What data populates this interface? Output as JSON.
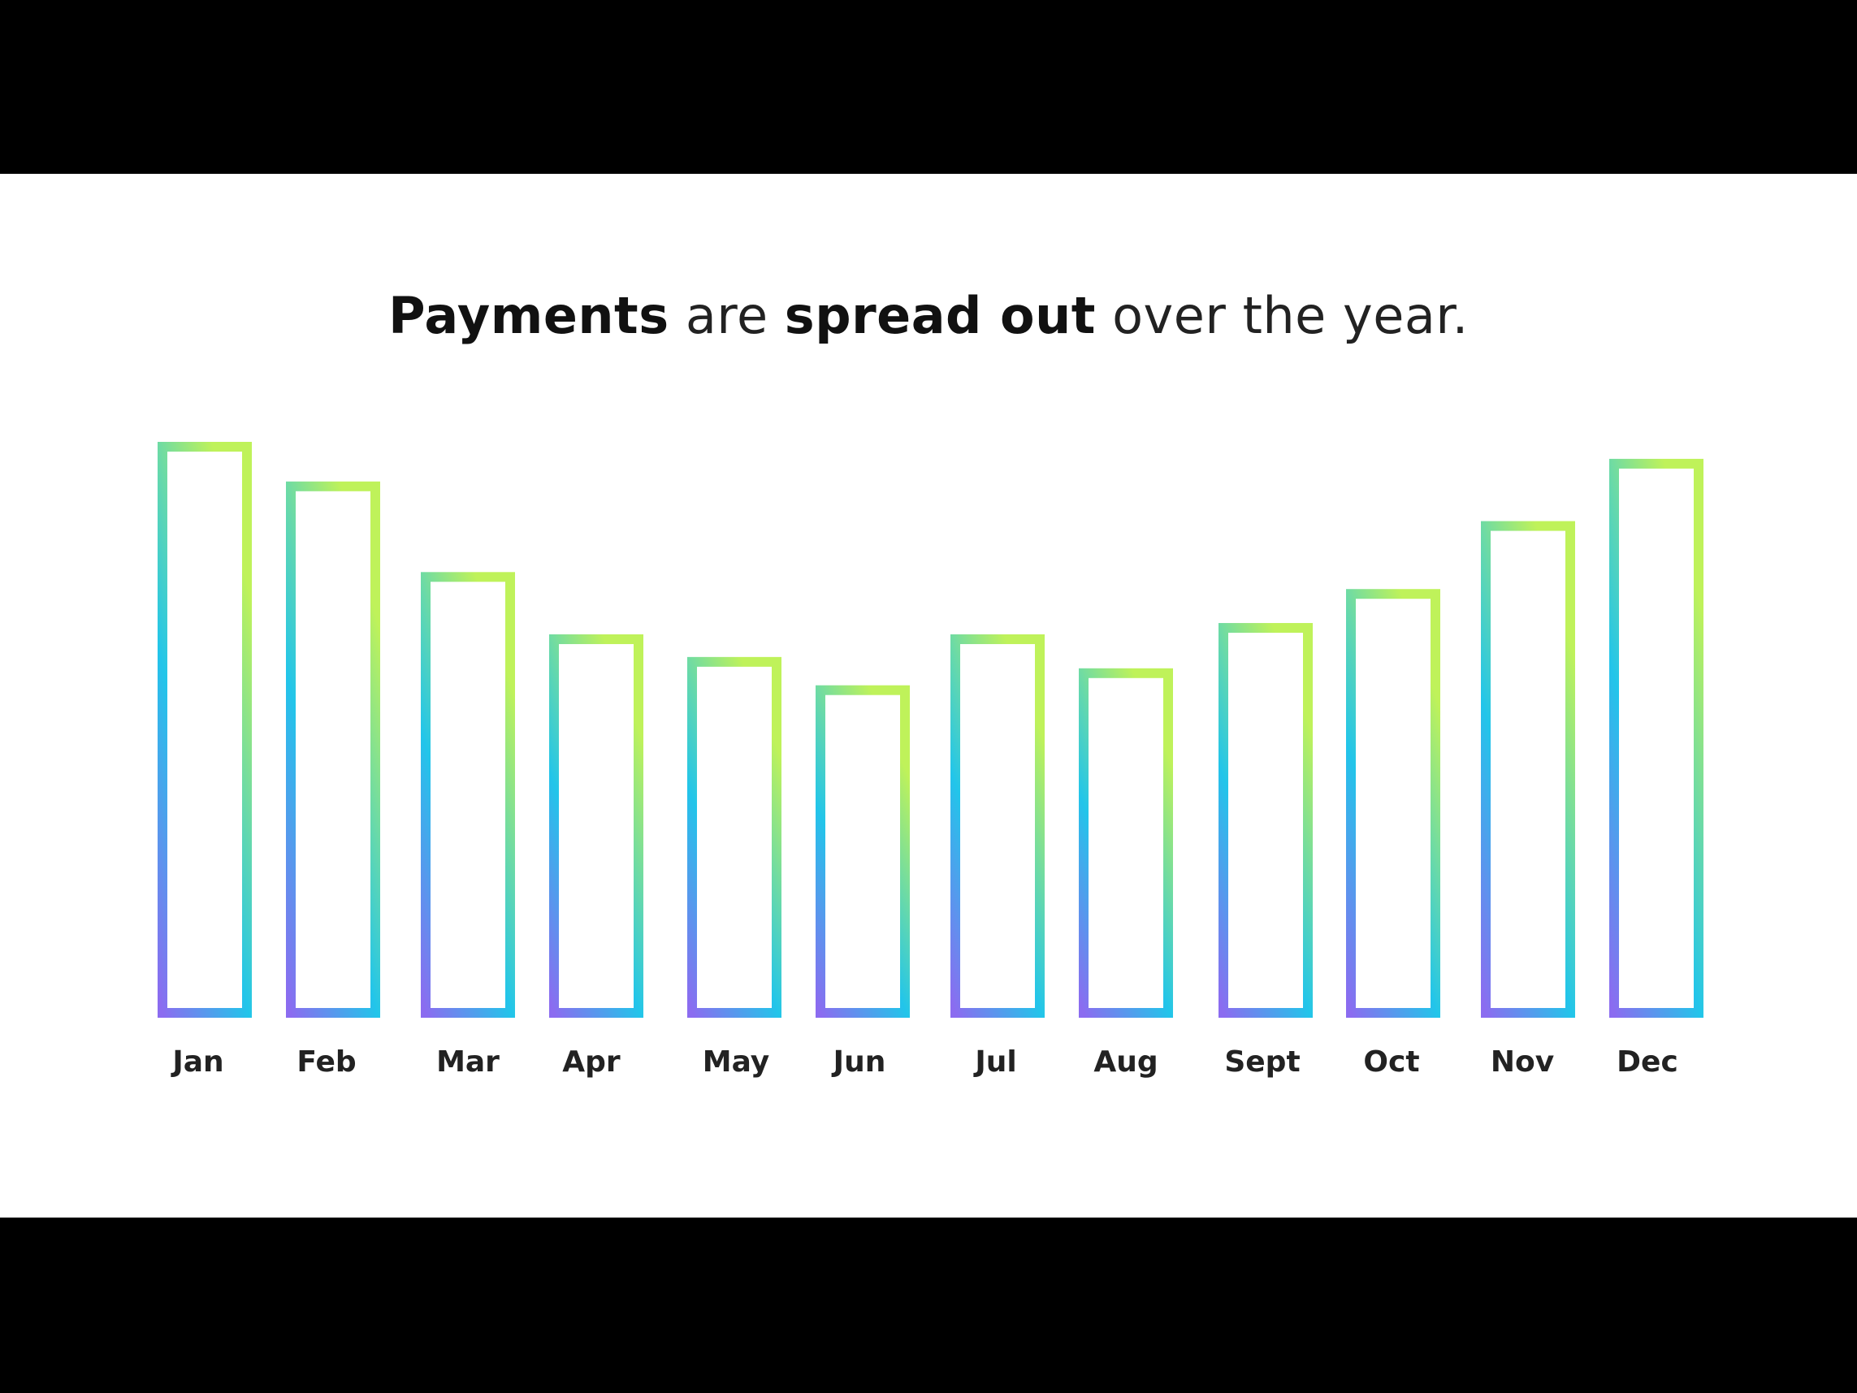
{
  "title": {
    "part1": "Payments",
    "part2": " are ",
    "part3": "spread out",
    "part4": " over the year."
  },
  "chart_data": {
    "type": "bar",
    "title": "Payments are spread out over the year.",
    "categories": [
      "Jan",
      "Feb",
      "Mar",
      "Apr",
      "May",
      "Jun",
      "Jul",
      "Aug",
      "Sept",
      "Oct",
      "Nov",
      "Dec"
    ],
    "values": [
      100,
      93,
      77,
      66,
      62,
      57,
      66,
      60,
      68,
      74,
      86,
      97
    ],
    "xlabel": "",
    "ylabel": "",
    "ylim": [
      0,
      100
    ],
    "grid": false,
    "bar_style": "outlined with gradient stroke",
    "colors": {
      "bottom": "#8b6cf0",
      "middle": "#22c5ea",
      "top": "#bff25a"
    }
  }
}
